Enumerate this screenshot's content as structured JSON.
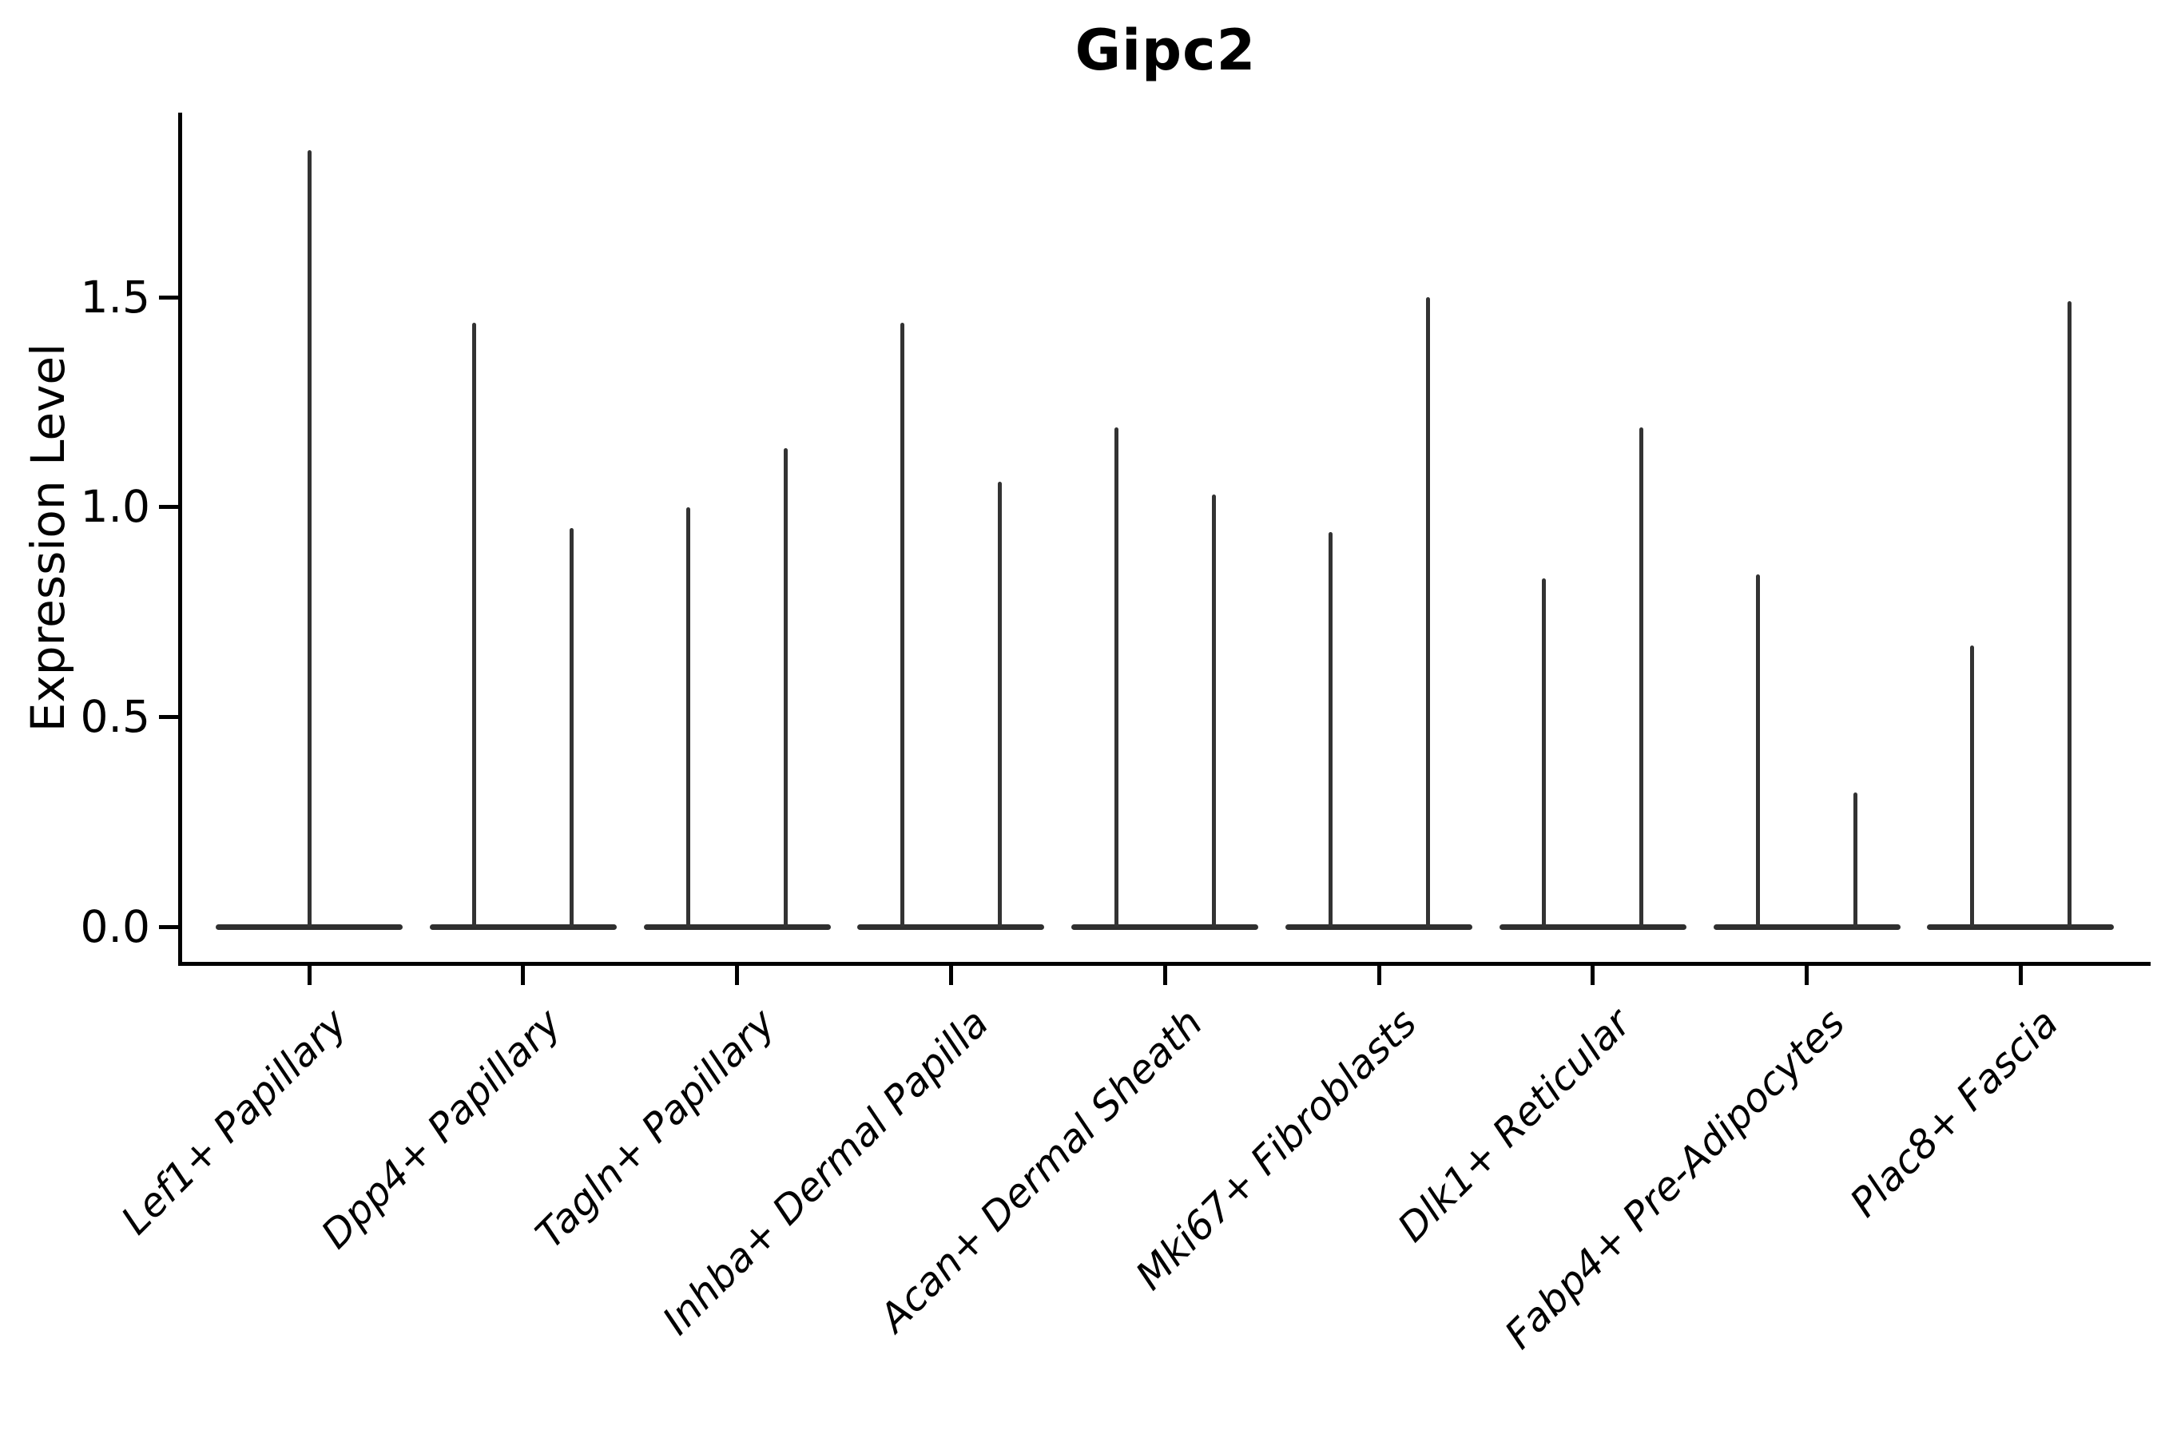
{
  "title": "Gipc2",
  "y_axis": {
    "label": "Expression Level",
    "tick_labels": [
      "0.0",
      "0.5",
      "1.0",
      "1.5"
    ]
  },
  "chart_data": {
    "type": "violin",
    "title": "Gipc2",
    "xlabel": "",
    "ylabel": "Expression Level",
    "ylim": [
      -0.09,
      1.94
    ],
    "yticks": [
      0.0,
      0.5,
      1.0,
      1.5
    ],
    "grid": false,
    "legend_position": "none",
    "style": "sparse expression violins: wide flat base bar at 0 with thin vertical density spikes reaching each group maximum; x labels rotated 45deg italic",
    "categories": [
      "Lef1+ Papillary",
      "Dpp4+ Papillary",
      "Tagln+ Papillary",
      "Inhba+ Dermal Papilla",
      "Acan+ Dermal Sheath",
      "Mki67+ Fibroblasts",
      "Dlk1+ Reticular",
      "Fabp4+ Pre-Adipocytes",
      "Plac8+ Fascia"
    ],
    "violins": [
      {
        "category": "Lef1+ Papillary",
        "spikes": [
          1.85
        ]
      },
      {
        "category": "Dpp4+ Papillary",
        "spikes": [
          1.44,
          0.95
        ]
      },
      {
        "category": "Tagln+ Papillary",
        "spikes": [
          1.0,
          1.14
        ]
      },
      {
        "category": "Inhba+ Dermal Papilla",
        "spikes": [
          1.44,
          1.06
        ]
      },
      {
        "category": "Acan+ Dermal Sheath",
        "spikes": [
          1.19,
          1.03
        ]
      },
      {
        "category": "Mki67+ Fibroblasts",
        "spikes": [
          0.94,
          1.5
        ]
      },
      {
        "category": "Dlk1+ Reticular",
        "spikes": [
          0.83,
          1.19
        ]
      },
      {
        "category": "Fabp4+ Pre-Adipocytes",
        "spikes": [
          0.84,
          0.32
        ]
      },
      {
        "category": "Plac8+ Fascia",
        "spikes": [
          0.67,
          1.49
        ]
      }
    ],
    "baseline_value": 0.0,
    "colors": {
      "violin_line": "#333333",
      "violin_base": "#2f2f2f",
      "spine": "#000000",
      "text": "#000000",
      "background": "#ffffff"
    }
  }
}
